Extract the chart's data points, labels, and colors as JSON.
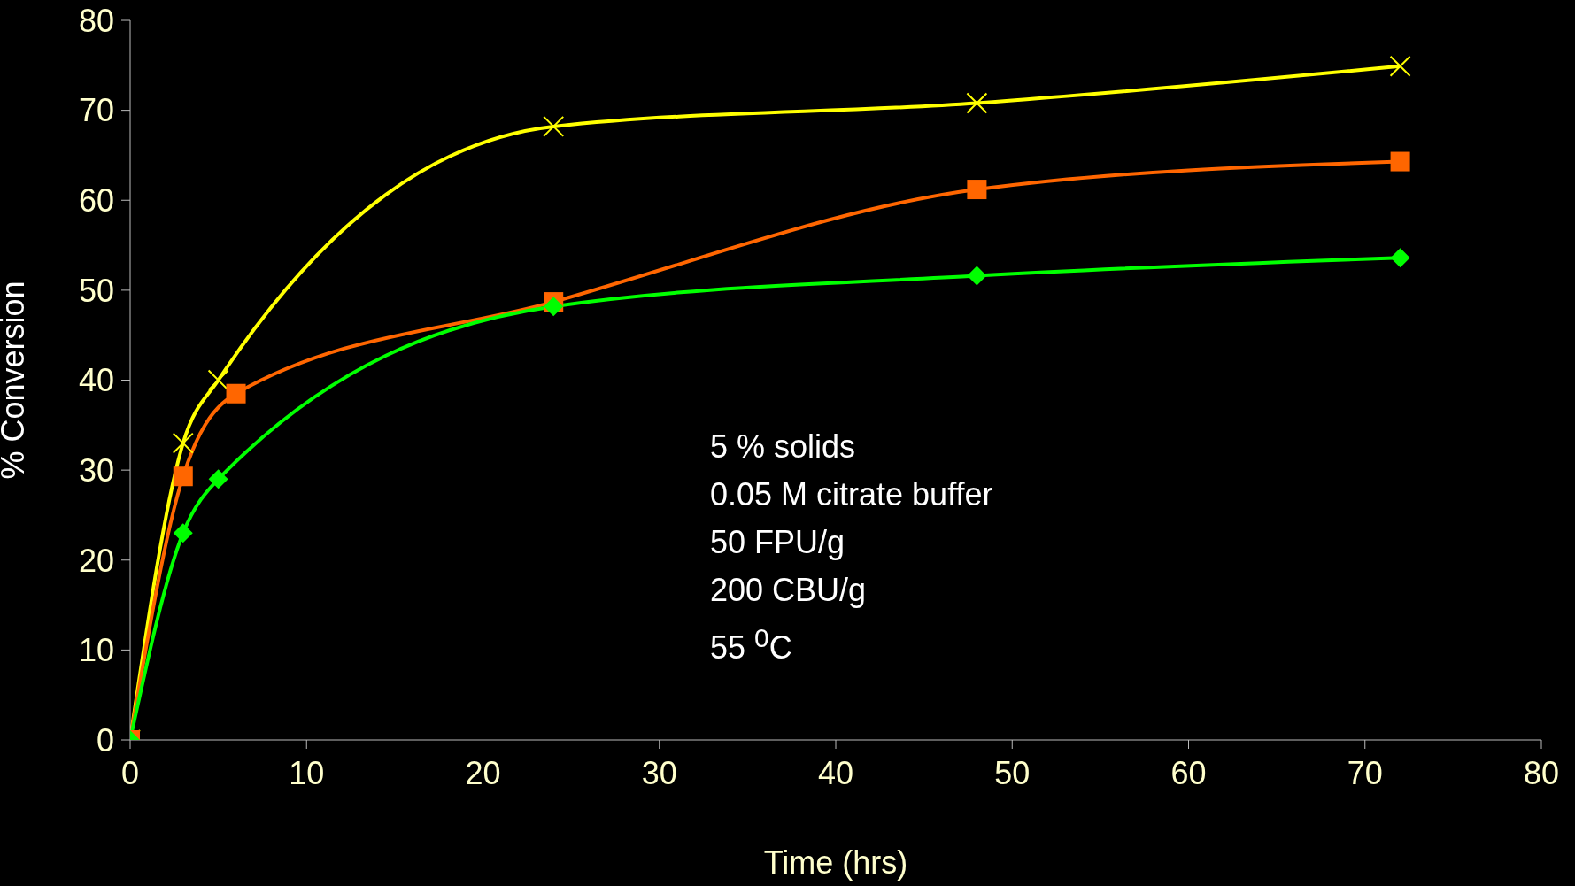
{
  "chart_data": {
    "type": "line",
    "xlabel": "Time (hrs)",
    "ylabel": "% Conversion",
    "xlim": [
      0,
      80
    ],
    "xticks": [
      0,
      10,
      20,
      30,
      40,
      50,
      60,
      70,
      80
    ],
    "ylim": [
      0,
      80
    ],
    "yticks": [
      0,
      10,
      20,
      30,
      40,
      50,
      60,
      70,
      80
    ],
    "grid": false,
    "legend": false,
    "line_style": "solid",
    "series": [
      {
        "color": "#ffff00",
        "marker": "cross",
        "x": [
          0,
          3,
          5,
          24,
          48,
          72
        ],
        "values": [
          0,
          33,
          40,
          68.2,
          70.8,
          74.9
        ]
      },
      {
        "color": "#ff6600",
        "marker": "square",
        "x": [
          0,
          3,
          6,
          24,
          48,
          72
        ],
        "values": [
          0,
          29.3,
          38.5,
          48.7,
          61.2,
          64.3
        ]
      },
      {
        "color": "#00ff00",
        "marker": "diamond",
        "x": [
          0,
          3,
          5,
          24,
          48,
          72
        ],
        "values": [
          0,
          23,
          29,
          48.2,
          51.6,
          53.6
        ]
      }
    ],
    "annotations": [
      "5 % solids",
      "0.05 M citrate buffer",
      "50 FPU/g",
      "200 CBU/g",
      "55 $^{0}$C"
    ]
  }
}
